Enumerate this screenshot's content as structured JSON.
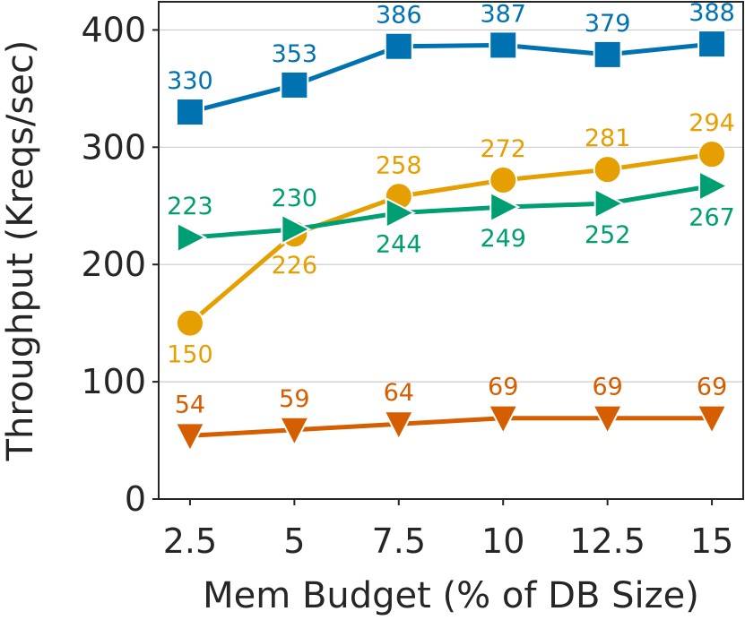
{
  "chart_data": {
    "type": "line",
    "title": "",
    "xlabel": "Mem Budget (% of DB Size)",
    "ylabel": "Throughput (Kreqs/sec)",
    "x": [
      2.5,
      5,
      7.5,
      10,
      12.5,
      15
    ],
    "x_tick_labels": [
      "2.5",
      "5",
      "7.5",
      "10",
      "12.5",
      "15"
    ],
    "y_ticks": [
      0,
      100,
      200,
      300,
      400
    ],
    "y_tick_labels": [
      "0",
      "100",
      "200",
      "300",
      "400"
    ],
    "xlim": [
      1.75,
      15.75
    ],
    "ylim": [
      0,
      424
    ],
    "grid": "horizontal",
    "legend": "none",
    "series": [
      {
        "name": "blue-squares",
        "color": "#0072b2",
        "marker": "square",
        "values": [
          330,
          353,
          386,
          387,
          379,
          388
        ],
        "labels": [
          "330",
          "353",
          "386",
          "387",
          "379",
          "388"
        ],
        "label_position": "above"
      },
      {
        "name": "orange-circles",
        "color": "#e69f00",
        "marker": "circle",
        "values": [
          150,
          226,
          258,
          272,
          281,
          294
        ],
        "labels": [
          "150",
          "226",
          "258",
          "272",
          "281",
          "294"
        ],
        "label_position": [
          "below",
          "below",
          "above",
          "above",
          "above",
          "above"
        ]
      },
      {
        "name": "green-triangles",
        "color": "#009e73",
        "marker": "triangle-right",
        "values": [
          223,
          230,
          244,
          249,
          252,
          267
        ],
        "labels": [
          "223",
          "230",
          "244",
          "249",
          "252",
          "267"
        ],
        "label_position": [
          "above",
          "above",
          "below",
          "below",
          "below",
          "below"
        ]
      },
      {
        "name": "red-orange-triangles",
        "color": "#d55e00",
        "marker": "triangle-down",
        "values": [
          54,
          59,
          64,
          69,
          69,
          69
        ],
        "labels": [
          "54",
          "59",
          "64",
          "69",
          "69",
          "69"
        ],
        "label_position": "above"
      }
    ]
  }
}
